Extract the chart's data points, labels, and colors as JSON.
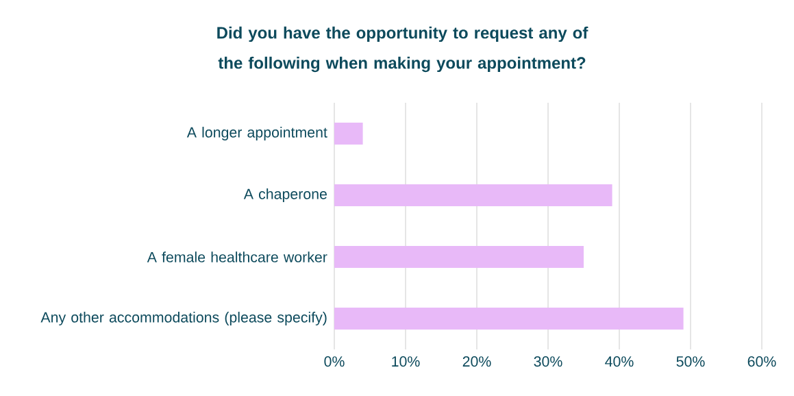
{
  "chart_data": {
    "type": "bar",
    "orientation": "horizontal",
    "title": "Did you have the opportunity to request any of the following when making your appointment?",
    "categories": [
      "A longer appointment",
      "A chaperone",
      "A female healthcare worker",
      "Any other accommodations (please specify)"
    ],
    "values": [
      4,
      39,
      35,
      49
    ],
    "color": "#e8b9f8",
    "xlim": [
      0,
      60
    ],
    "xticks": [
      {
        "value": 0,
        "label": "0%"
      },
      {
        "value": 10,
        "label": "10%"
      },
      {
        "value": 20,
        "label": "20%"
      },
      {
        "value": 30,
        "label": "30%"
      },
      {
        "value": 40,
        "label": "40%"
      },
      {
        "value": 50,
        "label": "50%"
      },
      {
        "value": 60,
        "label": "60%"
      }
    ],
    "grid": "x"
  }
}
